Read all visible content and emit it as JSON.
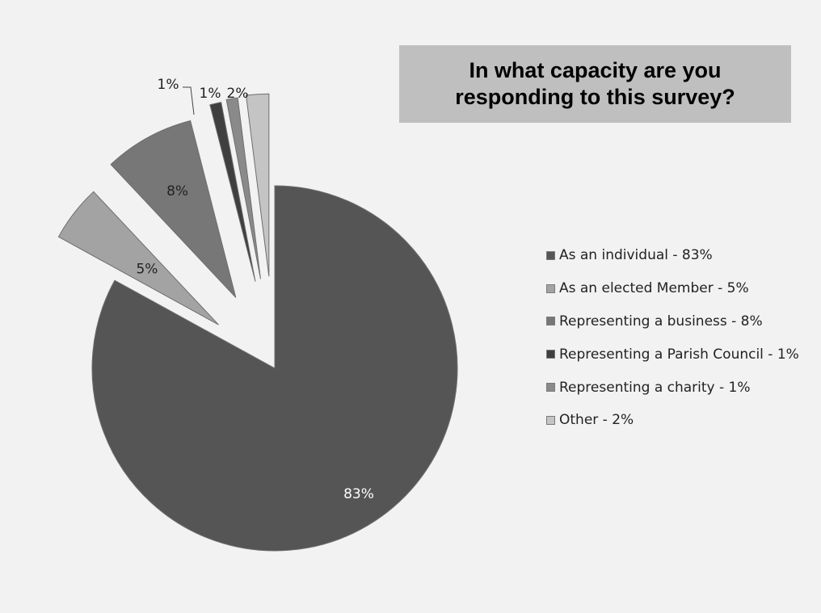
{
  "chart_data": {
    "type": "pie",
    "title": [
      "In what capacity are you",
      "responding to this survey?"
    ],
    "slices": [
      {
        "label": "As an individual - 83%",
        "value": 83,
        "data_label": "83%",
        "color": "#555555",
        "exploded": false
      },
      {
        "label": "As an elected Member - 5%",
        "value": 5,
        "data_label": "5%",
        "color": "#a3a3a3",
        "exploded": true
      },
      {
        "label": "Representing a business - 8%",
        "value": 8,
        "data_label": "8%",
        "color": "#777777",
        "exploded": true
      },
      {
        "label": "Representing a Parish Council - 1%",
        "value": 1,
        "data_label": "1%",
        "color": "#3f3f3f",
        "exploded": true
      },
      {
        "label": "Representing a charity - 1%",
        "value": 1,
        "data_label": "1%",
        "color": "#8a8a8a",
        "exploded": true
      },
      {
        "label": "Other - 2%",
        "value": 2,
        "data_label": "2%",
        "color": "#c4c4c4",
        "exploded": true
      }
    ],
    "legend_position": "right"
  }
}
